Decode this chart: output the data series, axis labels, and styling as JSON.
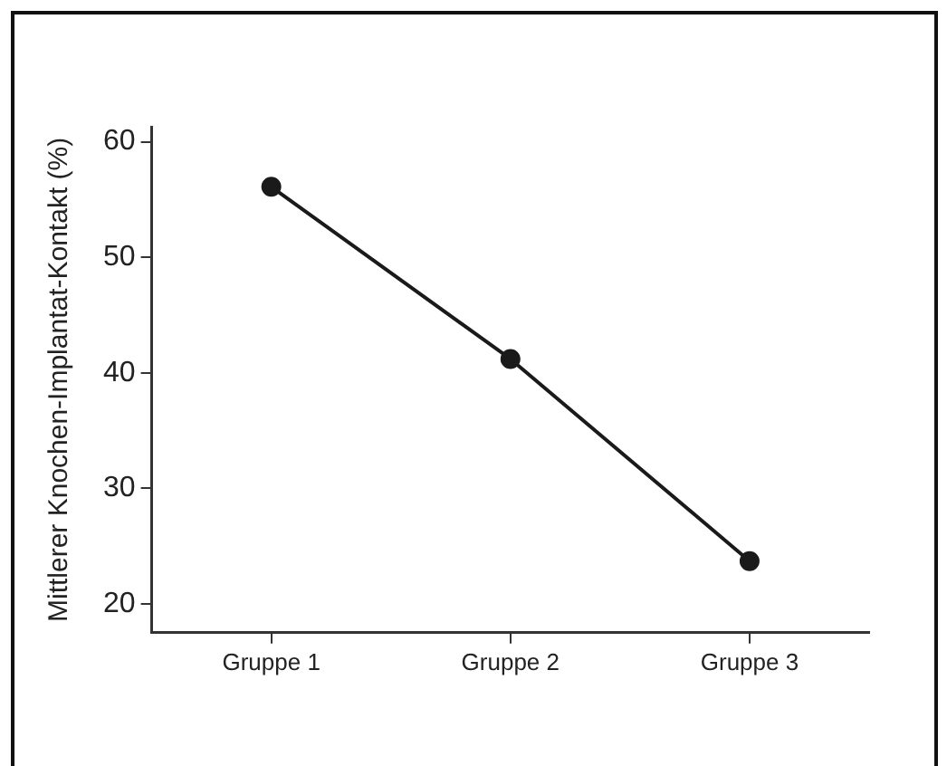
{
  "chart_data": {
    "type": "line",
    "ylabel": "Mittlerer Knochen-Implantat-Kontakt (%)",
    "categories": [
      "Gruppe 1",
      "Gruppe 2",
      "Gruppe 3"
    ],
    "series": [
      {
        "color": "#1a1a1a",
        "values": [
          56.1,
          41.2,
          23.7
        ]
      }
    ],
    "ylim": [
      17.5,
      61.3
    ],
    "yticks": [
      20,
      30,
      40,
      50,
      60
    ],
    "grid": false,
    "legend": false,
    "marker": "circle",
    "line_style": "solid"
  }
}
